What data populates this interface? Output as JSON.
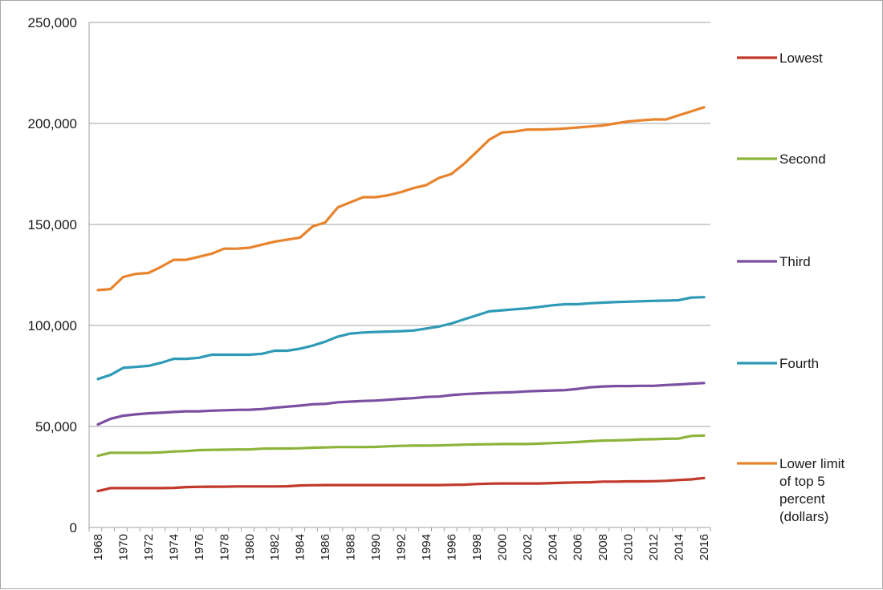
{
  "chart_data": {
    "type": "line",
    "title": "",
    "xlabel": "",
    "ylabel": "",
    "ylim": [
      0,
      250000
    ],
    "xlim": [
      1968,
      2016
    ],
    "grid": true,
    "legend_position": "right",
    "y_ticks": [
      {
        "value": 0,
        "label": "0"
      },
      {
        "value": 50000,
        "label": "50,000"
      },
      {
        "value": 100000,
        "label": "100,000"
      },
      {
        "value": 150000,
        "label": "150,000"
      },
      {
        "value": 200000,
        "label": "200,000"
      },
      {
        "value": 250000,
        "label": "250,000"
      }
    ],
    "x_ticks": [
      "1968",
      "1970",
      "1972",
      "1974",
      "1976",
      "1978",
      "1980",
      "1982",
      "1984",
      "1986",
      "1988",
      "1990",
      "1992",
      "1994",
      "1996",
      "1998",
      "2000",
      "2002",
      "2004",
      "2006",
      "2008",
      "2010",
      "2012",
      "2014",
      "2016"
    ],
    "x": [
      1968,
      1969,
      1970,
      1971,
      1972,
      1973,
      1974,
      1975,
      1976,
      1977,
      1978,
      1979,
      1980,
      1981,
      1982,
      1983,
      1984,
      1985,
      1986,
      1987,
      1988,
      1989,
      1990,
      1991,
      1992,
      1993,
      1994,
      1995,
      1996,
      1997,
      1998,
      1999,
      2000,
      2001,
      2002,
      2003,
      2004,
      2005,
      2006,
      2007,
      2008,
      2009,
      2010,
      2011,
      2012,
      2013,
      2014,
      2015,
      2016
    ],
    "series": [
      {
        "name": "Lowest",
        "color": "#c0392b",
        "values": [
          18000,
          19500,
          19500,
          19500,
          19500,
          19500,
          19600,
          20000,
          20100,
          20200,
          20200,
          20300,
          20300,
          20300,
          20300,
          20400,
          20800,
          20900,
          21000,
          21000,
          21000,
          21000,
          21000,
          21000,
          21000,
          21000,
          21000,
          21000,
          21100,
          21200,
          21500,
          21700,
          21800,
          21800,
          21800,
          21800,
          22000,
          22200,
          22300,
          22400,
          22700,
          22700,
          22800,
          22800,
          22900,
          23100,
          23500,
          23800,
          24500
        ]
      },
      {
        "name": "Second",
        "color": "#8db43a",
        "values": [
          35500,
          37000,
          37000,
          37000,
          37000,
          37200,
          37600,
          37800,
          38300,
          38400,
          38500,
          38600,
          38600,
          39000,
          39100,
          39100,
          39200,
          39500,
          39600,
          39800,
          39800,
          39800,
          39900,
          40200,
          40400,
          40500,
          40500,
          40600,
          40800,
          41000,
          41100,
          41200,
          41300,
          41300,
          41300,
          41500,
          41800,
          42000,
          42300,
          42700,
          43000,
          43100,
          43300,
          43600,
          43700,
          43900,
          44000,
          45300,
          45500
        ]
      },
      {
        "name": "Third",
        "color": "#7b4fa0",
        "values": [
          51000,
          53800,
          55300,
          56000,
          56500,
          56800,
          57200,
          57500,
          57500,
          57800,
          58000,
          58200,
          58300,
          58600,
          59300,
          59800,
          60300,
          61000,
          61200,
          62000,
          62300,
          62600,
          62800,
          63200,
          63700,
          64000,
          64600,
          64800,
          65500,
          66000,
          66300,
          66600,
          66800,
          67000,
          67400,
          67600,
          67800,
          68000,
          68600,
          69400,
          69800,
          70000,
          70000,
          70100,
          70100,
          70500,
          70800,
          71200,
          71500
        ]
      },
      {
        "name": "Fourth",
        "color": "#2e9ab6",
        "values": [
          73500,
          75500,
          79000,
          79500,
          80000,
          81500,
          83500,
          83500,
          84000,
          85500,
          85500,
          85500,
          85500,
          86000,
          87500,
          87500,
          88500,
          90000,
          92000,
          94500,
          96000,
          96500,
          96800,
          97000,
          97200,
          97500,
          98500,
          99500,
          101000,
          103000,
          105000,
          107000,
          107500,
          108000,
          108500,
          109200,
          110000,
          110500,
          110500,
          111000,
          111300,
          111600,
          111800,
          112000,
          112200,
          112300,
          112500,
          113800,
          114000
        ]
      },
      {
        "name": "Lower limit of top 5 percent (dollars)",
        "label_lines": [
          "Lower limit",
          "of top 5",
          "percent",
          "(dollars)"
        ],
        "color": "#e8832c",
        "values": [
          117500,
          118000,
          124000,
          125500,
          126000,
          129000,
          132500,
          132500,
          134000,
          135500,
          138000,
          138000,
          138500,
          140000,
          141500,
          142500,
          143500,
          149000,
          151000,
          158500,
          161000,
          163500,
          163500,
          164500,
          166000,
          168000,
          169500,
          173000,
          175000,
          180000,
          186000,
          192000,
          195500,
          196000,
          197000,
          197000,
          197200,
          197500,
          198000,
          198500,
          199000,
          200000,
          201000,
          201500,
          202000,
          202000,
          204000,
          206000,
          208000
        ]
      }
    ]
  }
}
